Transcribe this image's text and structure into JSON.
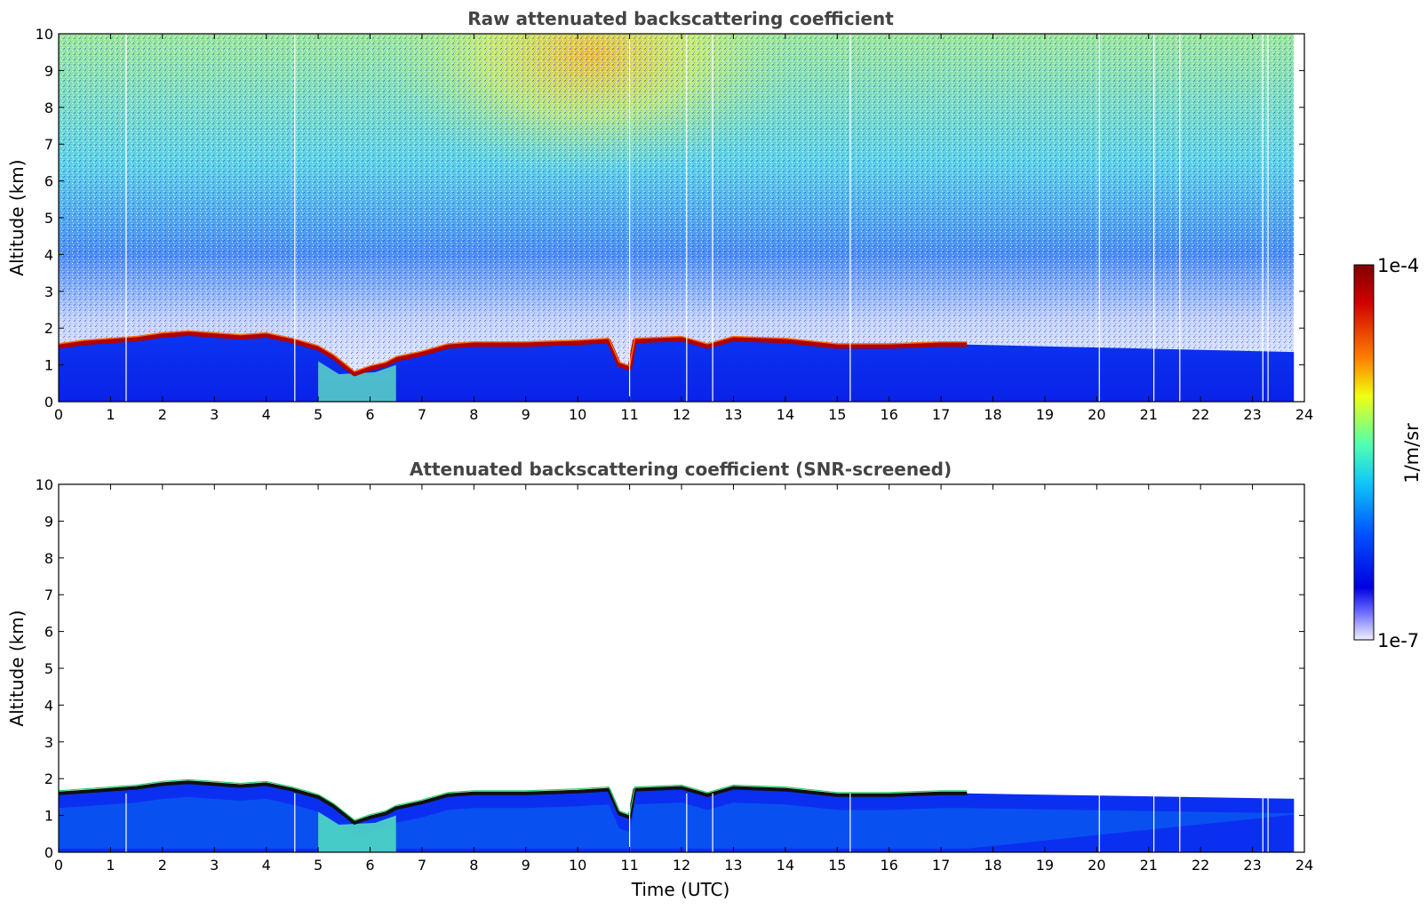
{
  "chart_data": [
    {
      "type": "heatmap",
      "title": "Raw attenuated backscattering coefficient",
      "ylabel": "Altitude (km)",
      "xlabel": "",
      "xlim": [
        0,
        24
      ],
      "ylim": [
        0,
        10
      ],
      "x_ticks": [
        "0",
        "1",
        "2",
        "3",
        "4",
        "5",
        "6",
        "7",
        "8",
        "9",
        "10",
        "11",
        "12",
        "13",
        "14",
        "15",
        "16",
        "17",
        "18",
        "19",
        "20",
        "21",
        "22",
        "23",
        "24"
      ],
      "y_ticks": [
        "0",
        "1",
        "2",
        "3",
        "4",
        "5",
        "6",
        "7",
        "8",
        "9",
        "10"
      ],
      "data_end_time": 23.8,
      "cloud_layer_km": [
        [
          0,
          1.5
        ],
        [
          0.5,
          1.6
        ],
        [
          1,
          1.65
        ],
        [
          1.5,
          1.7
        ],
        [
          2,
          1.8
        ],
        [
          2.5,
          1.85
        ],
        [
          3,
          1.8
        ],
        [
          3.5,
          1.75
        ],
        [
          4,
          1.8
        ],
        [
          4.5,
          1.65
        ],
        [
          5,
          1.45
        ],
        [
          5.3,
          1.2
        ],
        [
          5.7,
          0.75
        ],
        [
          6,
          0.9
        ],
        [
          6.3,
          1.0
        ],
        [
          6.5,
          1.15
        ],
        [
          7,
          1.3
        ],
        [
          7.5,
          1.5
        ],
        [
          8,
          1.55
        ],
        [
          9,
          1.55
        ],
        [
          10,
          1.6
        ],
        [
          10.6,
          1.65
        ],
        [
          10.8,
          1.0
        ],
        [
          11,
          0.9
        ],
        [
          11.1,
          1.65
        ],
        [
          12,
          1.7
        ],
        [
          12.5,
          1.5
        ],
        [
          13,
          1.7
        ],
        [
          14,
          1.65
        ],
        [
          15,
          1.5
        ],
        [
          16,
          1.5
        ],
        [
          17,
          1.55
        ],
        [
          17.5,
          1.55
        ]
      ],
      "grid": false,
      "colormap": "jet"
    },
    {
      "type": "heatmap",
      "title": "Attenuated backscattering coefficient (SNR-screened)",
      "ylabel": "Altitude (km)",
      "xlabel": "Time (UTC)",
      "xlim": [
        0,
        24
      ],
      "ylim": [
        0,
        10
      ],
      "x_ticks": [
        "0",
        "1",
        "2",
        "3",
        "4",
        "5",
        "6",
        "7",
        "8",
        "9",
        "10",
        "11",
        "12",
        "13",
        "14",
        "15",
        "16",
        "17",
        "18",
        "19",
        "20",
        "21",
        "22",
        "23",
        "24"
      ],
      "y_ticks": [
        "0",
        "1",
        "2",
        "3",
        "4",
        "5",
        "6",
        "7",
        "8",
        "9",
        "10"
      ],
      "data_end_time": 23.8,
      "cloud_layer_km": [
        [
          0,
          1.6
        ],
        [
          0.5,
          1.65
        ],
        [
          1,
          1.7
        ],
        [
          1.5,
          1.75
        ],
        [
          2,
          1.85
        ],
        [
          2.5,
          1.9
        ],
        [
          3,
          1.85
        ],
        [
          3.5,
          1.8
        ],
        [
          4,
          1.85
        ],
        [
          4.5,
          1.7
        ],
        [
          5,
          1.5
        ],
        [
          5.3,
          1.25
        ],
        [
          5.7,
          0.8
        ],
        [
          6,
          0.95
        ],
        [
          6.3,
          1.05
        ],
        [
          6.5,
          1.2
        ],
        [
          7,
          1.35
        ],
        [
          7.5,
          1.55
        ],
        [
          8,
          1.6
        ],
        [
          9,
          1.6
        ],
        [
          10,
          1.65
        ],
        [
          10.6,
          1.7
        ],
        [
          10.8,
          1.05
        ],
        [
          11,
          0.95
        ],
        [
          11.1,
          1.7
        ],
        [
          12,
          1.75
        ],
        [
          12.5,
          1.55
        ],
        [
          13,
          1.75
        ],
        [
          14,
          1.7
        ],
        [
          15,
          1.55
        ],
        [
          16,
          1.55
        ],
        [
          17,
          1.6
        ],
        [
          17.5,
          1.6
        ],
        [
          24,
          1.45
        ]
      ],
      "grid": false,
      "colormap": "jet"
    }
  ],
  "colorbar": {
    "max_label": "1e-4",
    "min_label": "1e-7",
    "unit_label": "1/m/sr",
    "colors": [
      "#800000",
      "#c00000",
      "#ff2000",
      "#ff7000",
      "#ffc000",
      "#f0ff10",
      "#a0ff60",
      "#50ffb0",
      "#10e0f0",
      "#00a0ff",
      "#0050ff",
      "#0010ff",
      "#0000e0",
      "#4040ff",
      "#8080ff",
      "#c0c0ff",
      "#f0f0ff"
    ]
  },
  "colors": {
    "background_blue": "#0a2cf0",
    "cloud_red": "#b00000",
    "text_title": "#444444"
  }
}
